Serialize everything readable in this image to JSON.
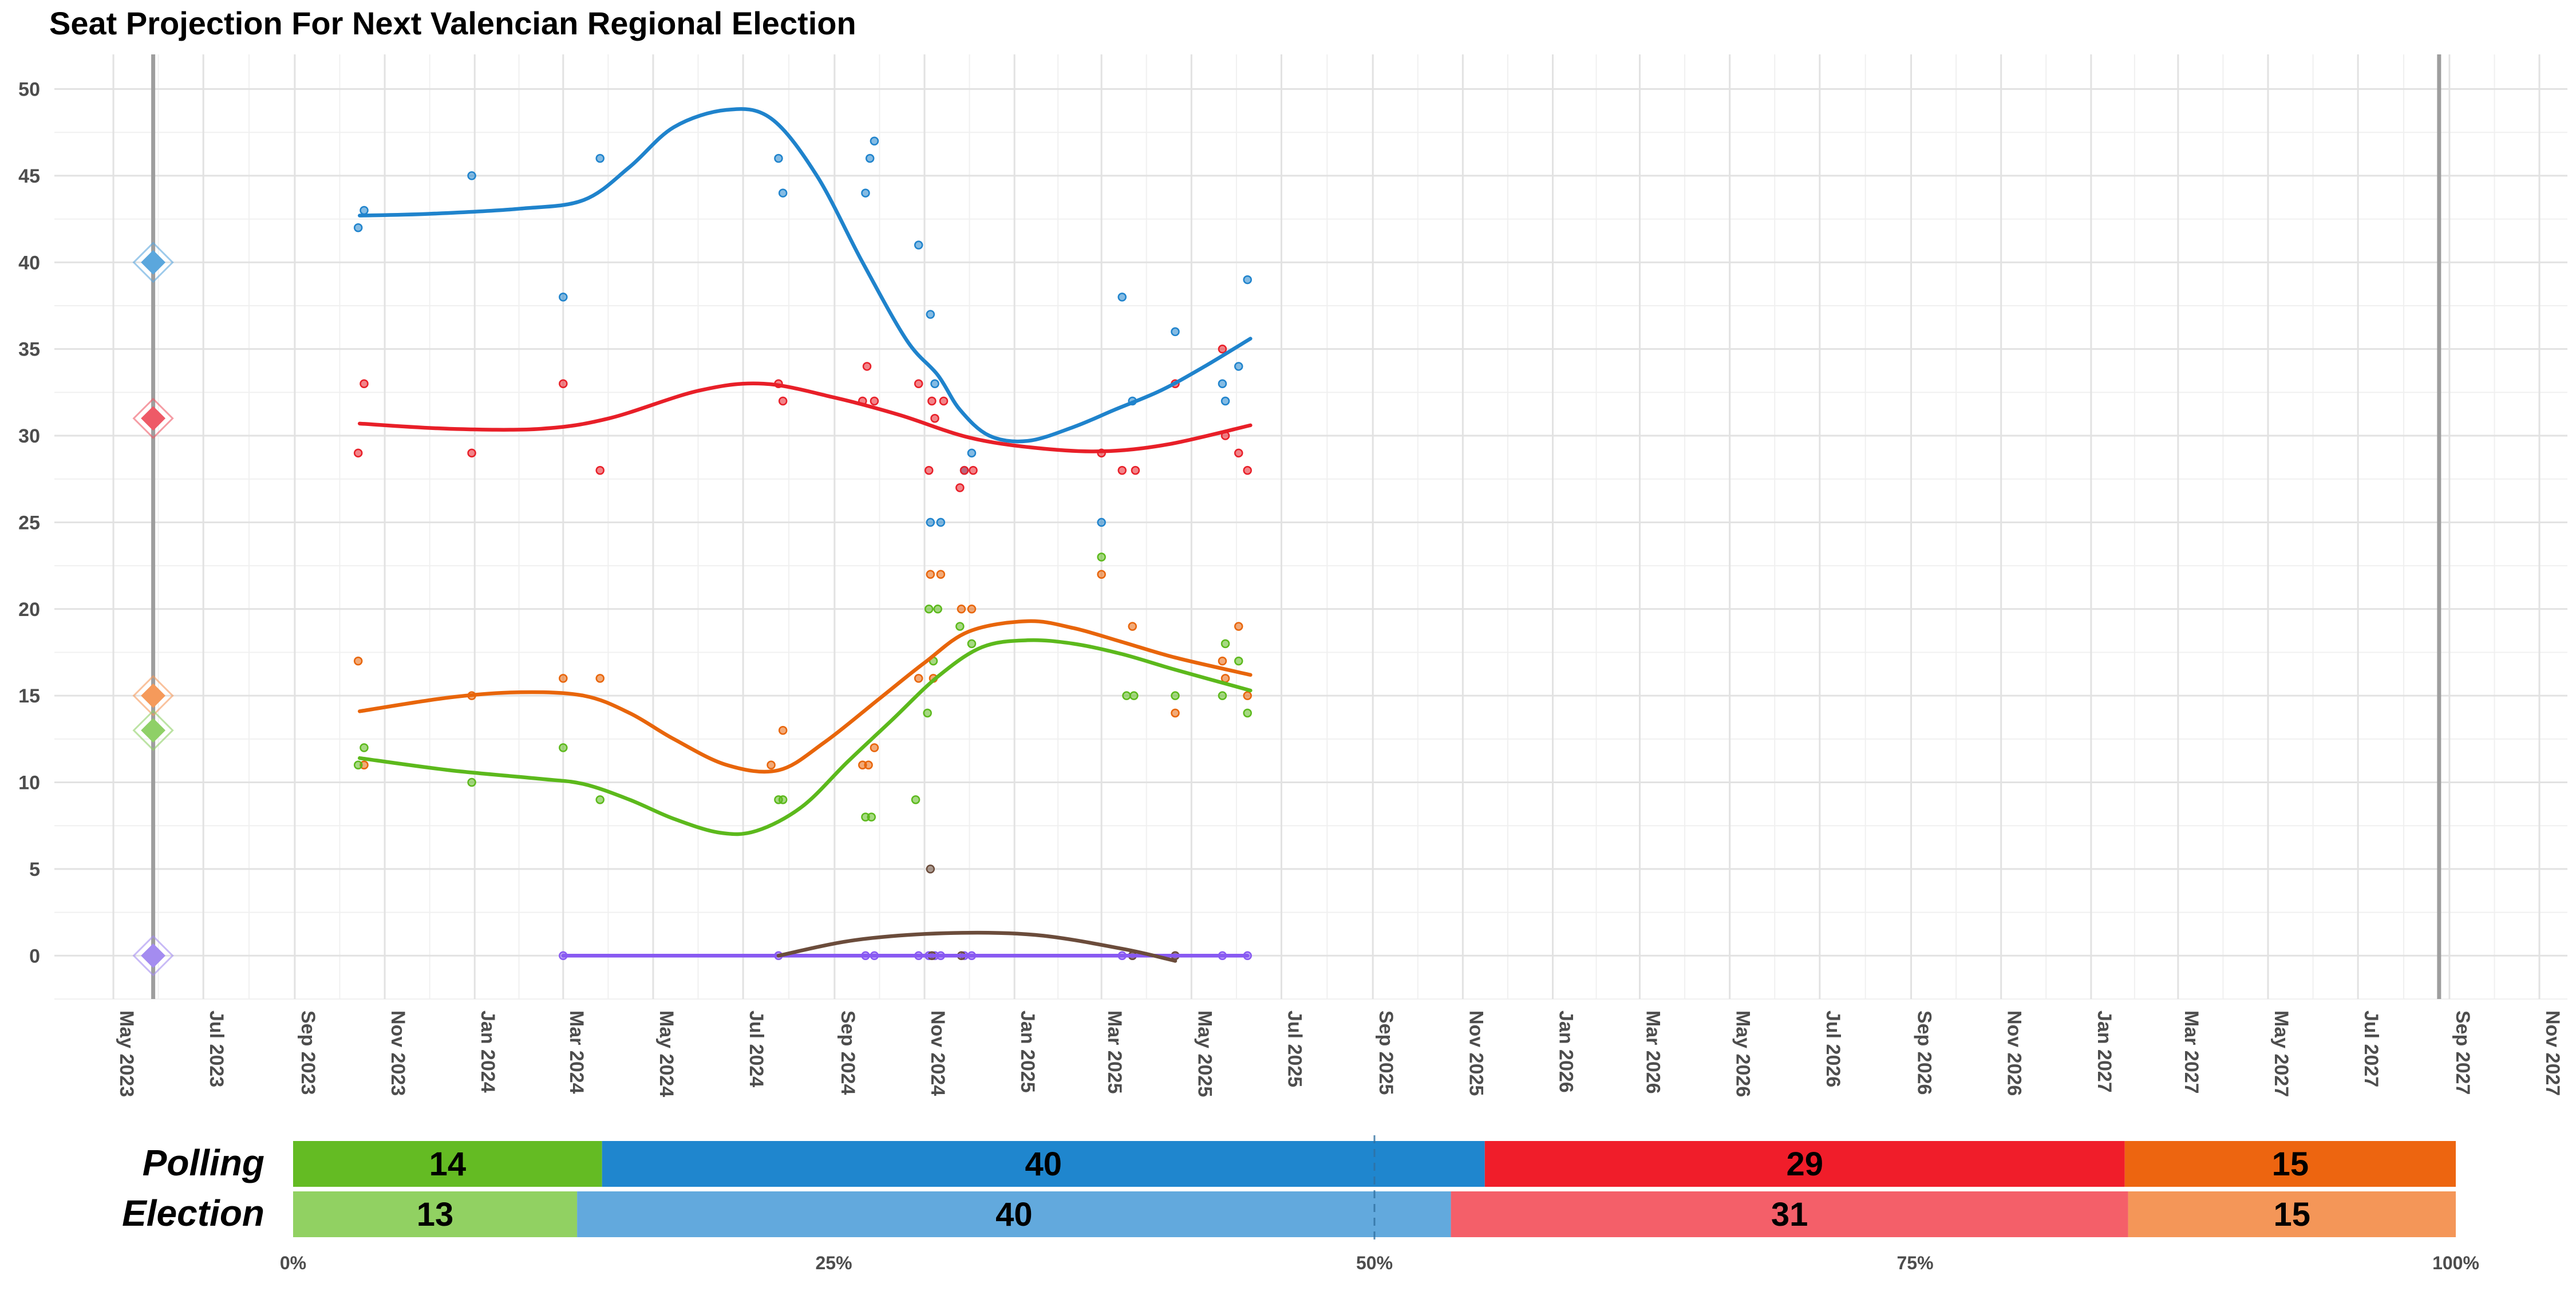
{
  "chart_data": [
    {
      "type": "line",
      "title": "Seat Projection For Next Valencian Regional Election",
      "ylim": [
        -2.5,
        52
      ],
      "y_ticks": [
        0,
        5,
        10,
        15,
        20,
        25,
        30,
        35,
        40,
        45,
        50
      ],
      "x_axis": {
        "type": "date",
        "range": [
          "2023-03-22",
          "2027-11-20"
        ],
        "tick_labels": [
          "May 2023",
          "Jul 2023",
          "Sep 2023",
          "Nov 2023",
          "Jan 2024",
          "Mar 2024",
          "May 2024",
          "Jul 2024",
          "Sep 2024",
          "Nov 2024",
          "Jan 2025",
          "Mar 2025",
          "May 2025",
          "Jul 2025",
          "Sep 2025",
          "Nov 2025",
          "Jan 2026",
          "Mar 2026",
          "May 2026",
          "Jul 2026",
          "Sep 2026",
          "Nov 2026",
          "Jan 2027",
          "Mar 2027",
          "May 2027",
          "Jul 2027",
          "Sep 2027",
          "Nov 2027"
        ],
        "tick_dates": [
          "2023-05-01",
          "2023-07-01",
          "2023-09-01",
          "2023-11-01",
          "2024-01-01",
          "2024-03-01",
          "2024-05-01",
          "2024-07-01",
          "2024-09-01",
          "2024-11-01",
          "2025-01-01",
          "2025-03-01",
          "2025-05-01",
          "2025-07-01",
          "2025-09-01",
          "2025-11-01",
          "2026-01-01",
          "2026-03-01",
          "2026-05-01",
          "2026-07-01",
          "2026-09-01",
          "2026-11-01",
          "2027-01-01",
          "2027-03-01",
          "2027-05-01",
          "2027-07-01",
          "2027-09-01",
          "2027-11-01"
        ]
      },
      "grid": true,
      "reference_lines": [
        "2023-05-28",
        "2027-08-25"
      ],
      "election_markers": [
        {
          "color": "#5ba7dd",
          "value": 40
        },
        {
          "color": "#ee5a67",
          "value": 31
        },
        {
          "color": "#f59a5b",
          "value": 15
        },
        {
          "color": "#8fd067",
          "value": 13
        },
        {
          "color": "#a48cf0",
          "value": 0
        }
      ],
      "series": [
        {
          "color": "#1f83cc",
          "trend": [
            [
              "2023-10-15",
              42.7
            ],
            [
              "2023-12-01",
              42.8
            ],
            [
              "2024-02-01",
              43.1
            ],
            [
              "2024-03-15",
              43.6
            ],
            [
              "2024-04-15",
              45.5
            ],
            [
              "2024-05-15",
              47.8
            ],
            [
              "2024-06-20",
              48.8
            ],
            [
              "2024-07-20",
              48.3
            ],
            [
              "2024-08-20",
              45.0
            ],
            [
              "2024-09-20",
              40.0
            ],
            [
              "2024-10-20",
              35.5
            ],
            [
              "2024-11-10",
              33.5
            ],
            [
              "2024-11-25",
              31.5
            ],
            [
              "2024-12-15",
              30.0
            ],
            [
              "2025-01-10",
              29.7
            ],
            [
              "2025-02-10",
              30.5
            ],
            [
              "2025-03-10",
              31.5
            ],
            [
              "2025-04-10",
              32.6
            ],
            [
              "2025-05-10",
              34.0
            ],
            [
              "2025-06-10",
              35.6
            ]
          ],
          "polls": [
            [
              "2023-10-14",
              42
            ],
            [
              "2023-10-18",
              43
            ],
            [
              "2023-12-30",
              45
            ],
            [
              "2024-03-01",
              38
            ],
            [
              "2024-03-26",
              46
            ],
            [
              "2024-07-25",
              46
            ],
            [
              "2024-07-28",
              44
            ],
            [
              "2024-09-22",
              44
            ],
            [
              "2024-09-25",
              46
            ],
            [
              "2024-09-28",
              47
            ],
            [
              "2024-10-28",
              41
            ],
            [
              "2024-11-05",
              37
            ],
            [
              "2024-11-08",
              33
            ],
            [
              "2024-11-05",
              25
            ],
            [
              "2024-11-12",
              25
            ],
            [
              "2024-11-28",
              28
            ],
            [
              "2024-12-03",
              29
            ],
            [
              "2025-03-01",
              25
            ],
            [
              "2025-03-15",
              38
            ],
            [
              "2025-03-22",
              32
            ],
            [
              "2025-04-20",
              36
            ],
            [
              "2025-05-22",
              33
            ],
            [
              "2025-05-24",
              32
            ],
            [
              "2025-06-02",
              34
            ],
            [
              "2025-06-08",
              39
            ]
          ]
        },
        {
          "color": "#e81f28",
          "trend": [
            [
              "2023-10-15",
              30.7
            ],
            [
              "2023-12-15",
              30.4
            ],
            [
              "2024-02-15",
              30.4
            ],
            [
              "2024-04-01",
              31.0
            ],
            [
              "2024-06-01",
              32.6
            ],
            [
              "2024-07-15",
              33.0
            ],
            [
              "2024-09-01",
              32.2
            ],
            [
              "2024-10-15",
              31.2
            ],
            [
              "2024-12-01",
              29.9
            ],
            [
              "2025-01-15",
              29.3
            ],
            [
              "2025-03-01",
              29.1
            ],
            [
              "2025-04-15",
              29.5
            ],
            [
              "2025-06-10",
              30.6
            ]
          ],
          "polls": [
            [
              "2023-10-14",
              29
            ],
            [
              "2023-10-18",
              33
            ],
            [
              "2023-12-30",
              29
            ],
            [
              "2024-03-01",
              33
            ],
            [
              "2024-03-26",
              28
            ],
            [
              "2024-07-25",
              33
            ],
            [
              "2024-07-28",
              32
            ],
            [
              "2024-09-20",
              32
            ],
            [
              "2024-09-23",
              34
            ],
            [
              "2024-09-28",
              32
            ],
            [
              "2024-10-28",
              33
            ],
            [
              "2024-11-04",
              28
            ],
            [
              "2024-11-06",
              32
            ],
            [
              "2024-11-08",
              31
            ],
            [
              "2024-11-14",
              32
            ],
            [
              "2024-11-25",
              27
            ],
            [
              "2024-11-28",
              28
            ],
            [
              "2024-12-04",
              28
            ],
            [
              "2025-03-01",
              29
            ],
            [
              "2025-03-15",
              28
            ],
            [
              "2025-03-24",
              28
            ],
            [
              "2025-04-20",
              33
            ],
            [
              "2025-05-22",
              35
            ],
            [
              "2025-05-24",
              30
            ],
            [
              "2025-06-02",
              29
            ],
            [
              "2025-06-08",
              28
            ]
          ]
        },
        {
          "color": "#e8650a",
          "trend": [
            [
              "2023-10-15",
              14.1
            ],
            [
              "2023-12-15",
              14.9
            ],
            [
              "2024-02-01",
              15.2
            ],
            [
              "2024-03-15",
              15.0
            ],
            [
              "2024-04-15",
              14.0
            ],
            [
              "2024-05-15",
              12.5
            ],
            [
              "2024-06-20",
              11.0
            ],
            [
              "2024-07-25",
              10.7
            ],
            [
              "2024-08-25",
              12.3
            ],
            [
              "2024-10-01",
              14.8
            ],
            [
              "2024-11-01",
              16.9
            ],
            [
              "2024-12-01",
              18.7
            ],
            [
              "2025-01-10",
              19.3
            ],
            [
              "2025-02-10",
              18.9
            ],
            [
              "2025-03-15",
              18.1
            ],
            [
              "2025-04-20",
              17.2
            ],
            [
              "2025-06-10",
              16.2
            ]
          ],
          "polls": [
            [
              "2023-10-14",
              17
            ],
            [
              "2023-10-18",
              11
            ],
            [
              "2023-12-30",
              15
            ],
            [
              "2024-03-01",
              16
            ],
            [
              "2024-03-26",
              16
            ],
            [
              "2024-07-20",
              11
            ],
            [
              "2024-07-28",
              13
            ],
            [
              "2024-09-20",
              11
            ],
            [
              "2024-09-24",
              11
            ],
            [
              "2024-09-28",
              12
            ],
            [
              "2024-10-28",
              16
            ],
            [
              "2024-11-05",
              22
            ],
            [
              "2024-11-07",
              16
            ],
            [
              "2024-11-12",
              22
            ],
            [
              "2024-11-26",
              20
            ],
            [
              "2024-12-03",
              20
            ],
            [
              "2025-03-01",
              22
            ],
            [
              "2025-03-22",
              19
            ],
            [
              "2025-04-20",
              14
            ],
            [
              "2025-05-22",
              17
            ],
            [
              "2025-05-24",
              16
            ],
            [
              "2025-06-02",
              19
            ],
            [
              "2025-06-08",
              15
            ]
          ]
        },
        {
          "color": "#5cb91c",
          "trend": [
            [
              "2023-10-15",
              11.4
            ],
            [
              "2023-12-15",
              10.7
            ],
            [
              "2024-02-15",
              10.2
            ],
            [
              "2024-03-15",
              9.9
            ],
            [
              "2024-04-15",
              9.0
            ],
            [
              "2024-05-15",
              7.9
            ],
            [
              "2024-06-15",
              7.1
            ],
            [
              "2024-07-10",
              7.2
            ],
            [
              "2024-08-10",
              8.6
            ],
            [
              "2024-09-10",
              11.2
            ],
            [
              "2024-10-10",
              13.6
            ],
            [
              "2024-11-10",
              16.1
            ],
            [
              "2024-12-10",
              17.8
            ],
            [
              "2025-01-10",
              18.2
            ],
            [
              "2025-02-10",
              18.0
            ],
            [
              "2025-03-15",
              17.4
            ],
            [
              "2025-04-20",
              16.5
            ],
            [
              "2025-06-10",
              15.3
            ]
          ],
          "polls": [
            [
              "2023-10-14",
              11
            ],
            [
              "2023-10-18",
              12
            ],
            [
              "2023-12-30",
              10
            ],
            [
              "2024-03-01",
              12
            ],
            [
              "2024-03-26",
              9
            ],
            [
              "2024-07-25",
              9
            ],
            [
              "2024-07-28",
              9
            ],
            [
              "2024-09-22",
              8
            ],
            [
              "2024-09-26",
              8
            ],
            [
              "2024-10-26",
              9
            ],
            [
              "2024-11-03",
              14
            ],
            [
              "2024-11-04",
              20
            ],
            [
              "2024-11-07",
              17
            ],
            [
              "2024-11-10",
              20
            ],
            [
              "2024-11-25",
              19
            ],
            [
              "2024-12-03",
              18
            ],
            [
              "2025-03-01",
              23
            ],
            [
              "2025-03-18",
              15
            ],
            [
              "2025-03-23",
              15
            ],
            [
              "2025-04-20",
              15
            ],
            [
              "2025-05-22",
              15
            ],
            [
              "2025-05-24",
              18
            ],
            [
              "2025-06-02",
              17
            ],
            [
              "2025-06-08",
              14
            ]
          ]
        },
        {
          "color": "#8859f2",
          "trend": [
            [
              "2024-03-01",
              0
            ],
            [
              "2025-06-08",
              0
            ]
          ],
          "polls": [
            [
              "2024-03-01",
              0
            ],
            [
              "2024-07-25",
              0
            ],
            [
              "2024-09-22",
              0
            ],
            [
              "2024-09-28",
              0
            ],
            [
              "2024-10-28",
              0
            ],
            [
              "2024-11-04",
              0
            ],
            [
              "2024-11-08",
              0
            ],
            [
              "2024-11-12",
              0
            ],
            [
              "2024-11-28",
              0
            ],
            [
              "2024-12-03",
              0
            ],
            [
              "2025-03-15",
              0
            ],
            [
              "2025-03-22",
              0
            ],
            [
              "2025-04-20",
              0
            ],
            [
              "2025-05-22",
              0
            ],
            [
              "2025-06-08",
              0
            ]
          ]
        },
        {
          "color": "#6b4c3b",
          "trend": [
            [
              "2024-07-25",
              0
            ],
            [
              "2024-09-15",
              0.9
            ],
            [
              "2024-11-15",
              1.3
            ],
            [
              "2025-01-15",
              1.2
            ],
            [
              "2025-03-15",
              0.4
            ],
            [
              "2025-04-20",
              -0.3
            ]
          ],
          "polls": [
            [
              "2024-11-05",
              5
            ],
            [
              "2024-11-06",
              0
            ],
            [
              "2024-11-26",
              0
            ],
            [
              "2025-03-22",
              0
            ],
            [
              "2025-04-20",
              0
            ]
          ]
        }
      ]
    },
    {
      "type": "bar",
      "orientation": "horizontal",
      "stacked": true,
      "categories": [
        "Polling",
        "Election"
      ],
      "xlim": [
        0,
        100
      ],
      "x_ticks": [
        "0%",
        "25%",
        "50%",
        "75%",
        "100%"
      ],
      "majority_line_pct": 50,
      "rows": [
        {
          "label": "Polling",
          "segments": [
            {
              "value": 14,
              "color": "#64bb23"
            },
            {
              "value": 40,
              "color": "#1f86ce"
            },
            {
              "value": 29,
              "color": "#f01d2a"
            },
            {
              "value": 15,
              "color": "#ed6510"
            }
          ]
        },
        {
          "label": "Election",
          "segments": [
            {
              "value": 13,
              "color": "#91d162"
            },
            {
              "value": 40,
              "color": "#62a9dd"
            },
            {
              "value": 31,
              "color": "#f45f69"
            },
            {
              "value": 15,
              "color": "#f49658"
            }
          ]
        }
      ]
    }
  ]
}
